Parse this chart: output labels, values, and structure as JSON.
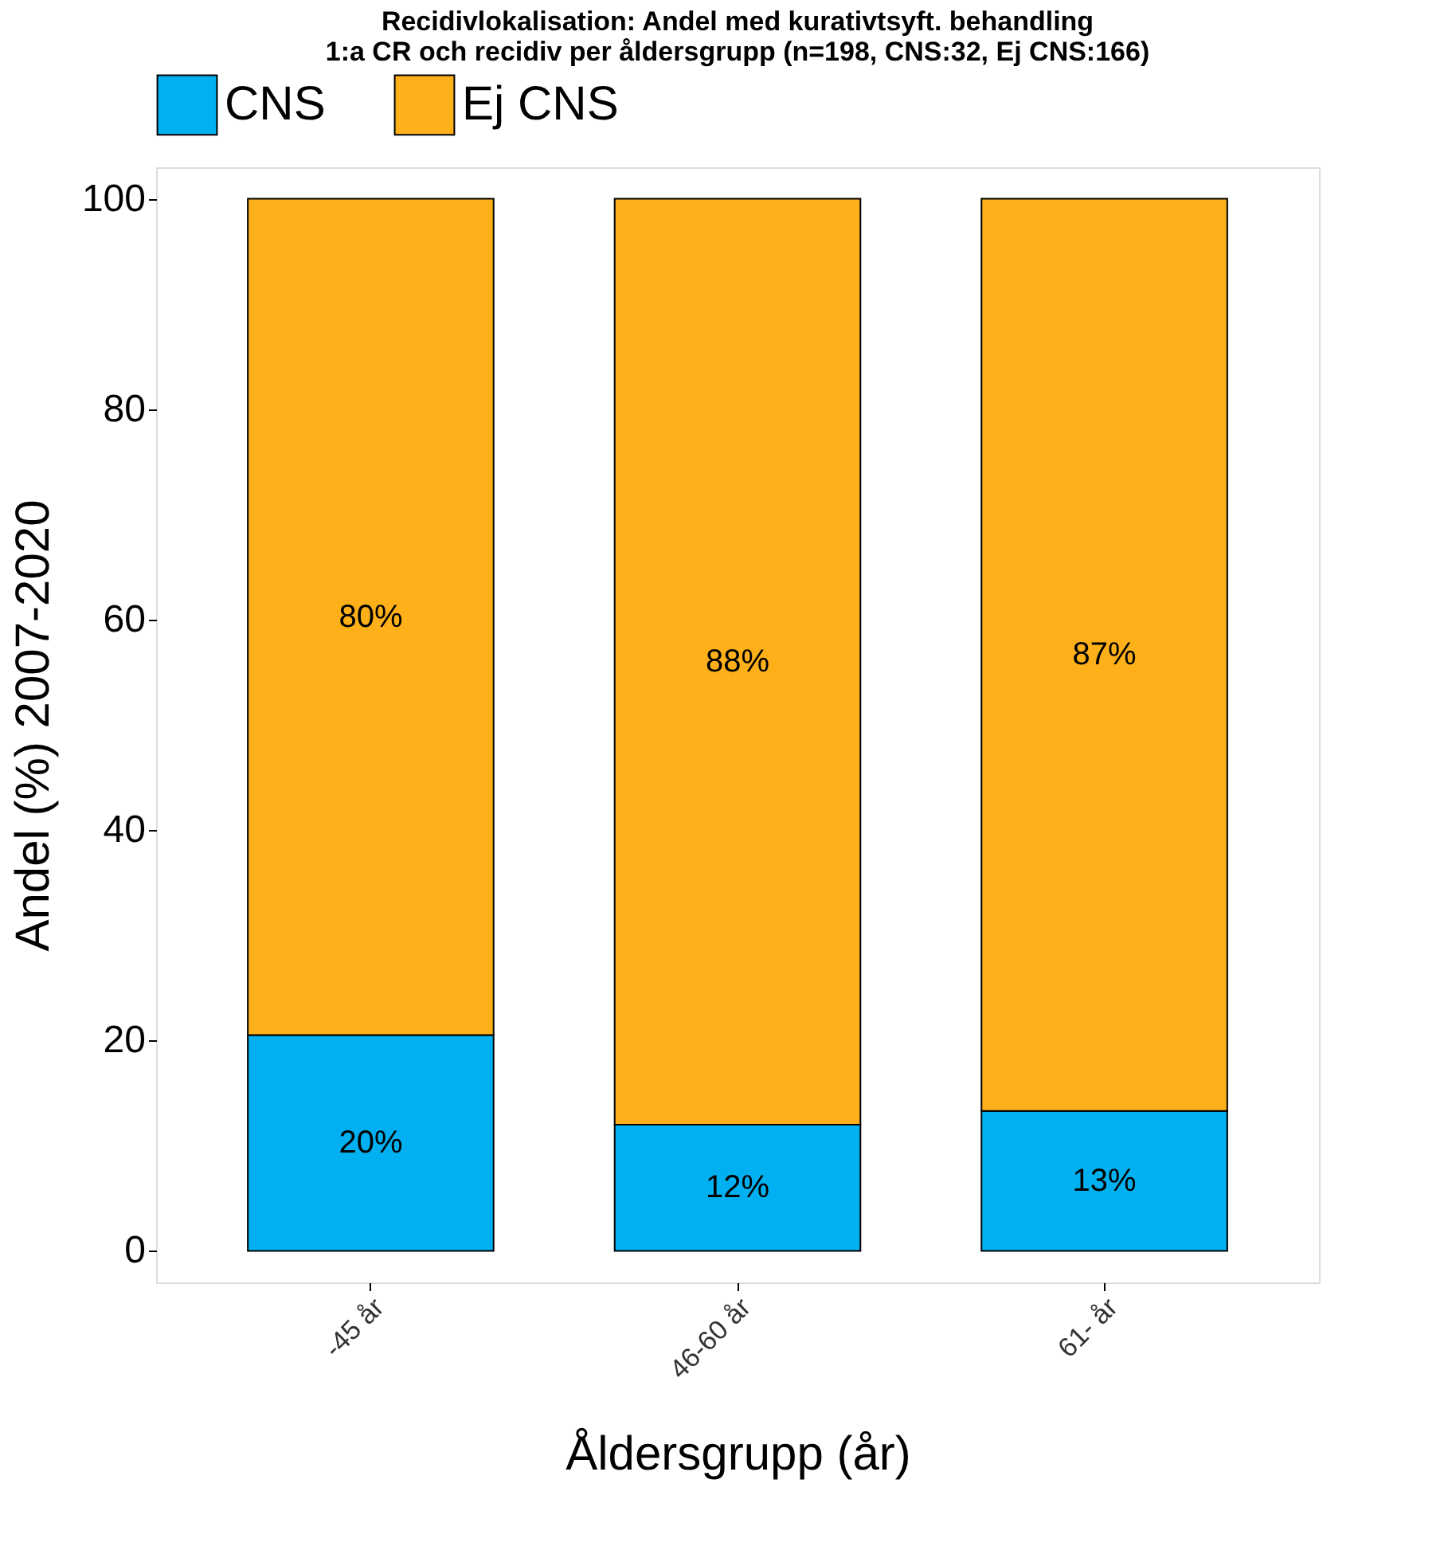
{
  "chart_data": {
    "type": "bar",
    "stacked": true,
    "title": [
      "Recidivlokalisation: Andel med kurativtsyft. behandling",
      "1:a CR och recidiv per åldersgrupp (n=198, CNS:32, Ej CNS:166)"
    ],
    "xlabel": "Åldersgrupp (år)",
    "ylabel": "Andel (%) 2007-2020",
    "categories": [
      "-45 år",
      "46-60 år",
      "61- år"
    ],
    "series": [
      {
        "name": "CNS",
        "color": "#00b0f0",
        "values": [
          20.5,
          12.0,
          13.3
        ],
        "value_labels": [
          "20%",
          "12%",
          "13%"
        ]
      },
      {
        "name": "Ej CNS",
        "color": "#fdb019",
        "values": [
          79.5,
          88.0,
          86.7
        ],
        "value_labels": [
          "80%",
          "88%",
          "87%"
        ]
      }
    ],
    "ylim": [
      -3,
      103
    ],
    "yticks": [
      0,
      20,
      40,
      60,
      80,
      100
    ],
    "grid": false,
    "legend": "top"
  }
}
